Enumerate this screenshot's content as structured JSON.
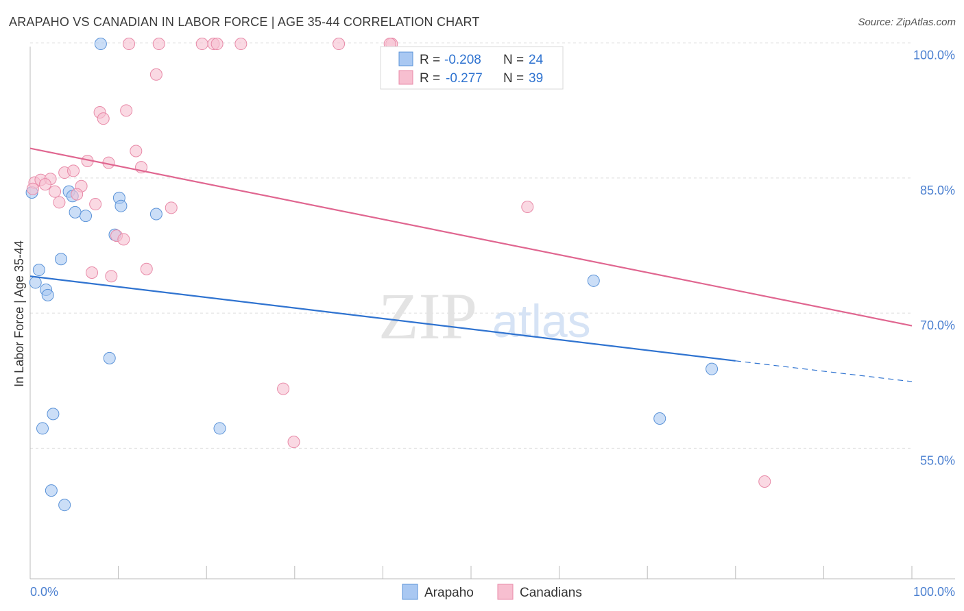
{
  "header": {
    "title": "ARAPAHO VS CANADIAN IN LABOR FORCE | AGE 35-44 CORRELATION CHART",
    "source": "Source: ZipAtlas.com"
  },
  "watermark": {
    "zip": "ZIP",
    "atlas": "atlas"
  },
  "colors": {
    "arapaho_fill": "#a9c8f2",
    "arapaho_stroke": "#5b93d8",
    "arapaho_line": "#2f73d0",
    "canadians_fill": "#f7bfd0",
    "canadians_stroke": "#e88aa8",
    "canadians_line": "#e06690",
    "tick_label": "#4a7fd0",
    "grid": "#dddddd"
  },
  "stats": [
    {
      "r_label": "R =",
      "r_value": "-0.208",
      "n_label": "N =",
      "n_value": "24"
    },
    {
      "r_label": "R =",
      "r_value": "-0.277",
      "n_label": "N =",
      "n_value": "39"
    }
  ],
  "chart_data": {
    "type": "scatter",
    "title": "ARAPAHO VS CANADIAN IN LABOR FORCE | AGE 35-44 CORRELATION CHART",
    "xlabel": "",
    "ylabel": "In Labor Force | Age 35-44",
    "xlim": [
      0,
      100
    ],
    "ylim": [
      40.5,
      101.5
    ],
    "x_tick_labels": [
      {
        "value": 0,
        "label": "0.0%"
      },
      {
        "value": 100,
        "label": "100.0%"
      }
    ],
    "y_tick_labels": [
      {
        "value": 100,
        "label": "100.0%"
      },
      {
        "value": 85,
        "label": "85.0%"
      },
      {
        "value": 70,
        "label": "70.0%"
      },
      {
        "value": 55,
        "label": "55.0%"
      }
    ],
    "grid": true,
    "legend": [
      "Arapaho",
      "Canadians"
    ],
    "series": [
      {
        "name": "Arapaho",
        "trend": {
          "x0": 0,
          "y0": 74.1,
          "x1": 80,
          "y1": 64.7,
          "dashed_to_x": 100,
          "dashed_to_y": 62.4
        },
        "points": [
          {
            "x": 8,
            "y": 99.9
          },
          {
            "x": 0.2,
            "y": 83.4
          },
          {
            "x": 4.4,
            "y": 83.5
          },
          {
            "x": 4.8,
            "y": 83.0
          },
          {
            "x": 10.1,
            "y": 82.8
          },
          {
            "x": 10.3,
            "y": 81.9
          },
          {
            "x": 5.1,
            "y": 81.2
          },
          {
            "x": 6.3,
            "y": 80.8
          },
          {
            "x": 14.3,
            "y": 81.0
          },
          {
            "x": 9.6,
            "y": 78.7
          },
          {
            "x": 3.5,
            "y": 76.0
          },
          {
            "x": 1.0,
            "y": 74.8
          },
          {
            "x": 0.6,
            "y": 73.4
          },
          {
            "x": 1.8,
            "y": 72.6
          },
          {
            "x": 2.0,
            "y": 72.0
          },
          {
            "x": 63.9,
            "y": 73.6
          },
          {
            "x": 9.0,
            "y": 65.0
          },
          {
            "x": 77.3,
            "y": 63.8
          },
          {
            "x": 2.6,
            "y": 58.8
          },
          {
            "x": 1.4,
            "y": 57.2
          },
          {
            "x": 21.5,
            "y": 57.2
          },
          {
            "x": 71.4,
            "y": 58.3
          },
          {
            "x": 2.4,
            "y": 50.3
          },
          {
            "x": 3.9,
            "y": 48.7
          }
        ]
      },
      {
        "name": "Canadians",
        "trend": {
          "x0": 0,
          "y0": 88.3,
          "x1": 100,
          "y1": 68.6
        },
        "points": [
          {
            "x": 11.2,
            "y": 99.9
          },
          {
            "x": 14.6,
            "y": 99.9
          },
          {
            "x": 19.5,
            "y": 99.9
          },
          {
            "x": 20.8,
            "y": 99.9
          },
          {
            "x": 21.2,
            "y": 99.9
          },
          {
            "x": 23.9,
            "y": 99.9
          },
          {
            "x": 35.0,
            "y": 99.9
          },
          {
            "x": 41.0,
            "y": 99.9
          },
          {
            "x": 14.3,
            "y": 96.5
          },
          {
            "x": 7.9,
            "y": 92.3
          },
          {
            "x": 8.3,
            "y": 91.6
          },
          {
            "x": 10.9,
            "y": 92.5
          },
          {
            "x": 12.0,
            "y": 88.0
          },
          {
            "x": 6.5,
            "y": 86.9
          },
          {
            "x": 8.9,
            "y": 86.7
          },
          {
            "x": 12.6,
            "y": 86.2
          },
          {
            "x": 3.9,
            "y": 85.6
          },
          {
            "x": 4.9,
            "y": 85.8
          },
          {
            "x": 0.5,
            "y": 84.5
          },
          {
            "x": 1.2,
            "y": 84.8
          },
          {
            "x": 2.3,
            "y": 84.9
          },
          {
            "x": 1.7,
            "y": 84.3
          },
          {
            "x": 5.8,
            "y": 84.1
          },
          {
            "x": 0.3,
            "y": 83.8
          },
          {
            "x": 2.8,
            "y": 83.5
          },
          {
            "x": 5.3,
            "y": 83.2
          },
          {
            "x": 3.3,
            "y": 82.3
          },
          {
            "x": 7.4,
            "y": 82.1
          },
          {
            "x": 16.0,
            "y": 81.7
          },
          {
            "x": 56.4,
            "y": 81.8
          },
          {
            "x": 9.8,
            "y": 78.6
          },
          {
            "x": 10.6,
            "y": 78.2
          },
          {
            "x": 7.0,
            "y": 74.5
          },
          {
            "x": 9.2,
            "y": 74.1
          },
          {
            "x": 13.2,
            "y": 74.9
          },
          {
            "x": 28.7,
            "y": 61.6
          },
          {
            "x": 29.9,
            "y": 55.7
          },
          {
            "x": 83.3,
            "y": 51.3
          },
          {
            "x": 40.8,
            "y": 99.9
          }
        ]
      }
    ]
  }
}
